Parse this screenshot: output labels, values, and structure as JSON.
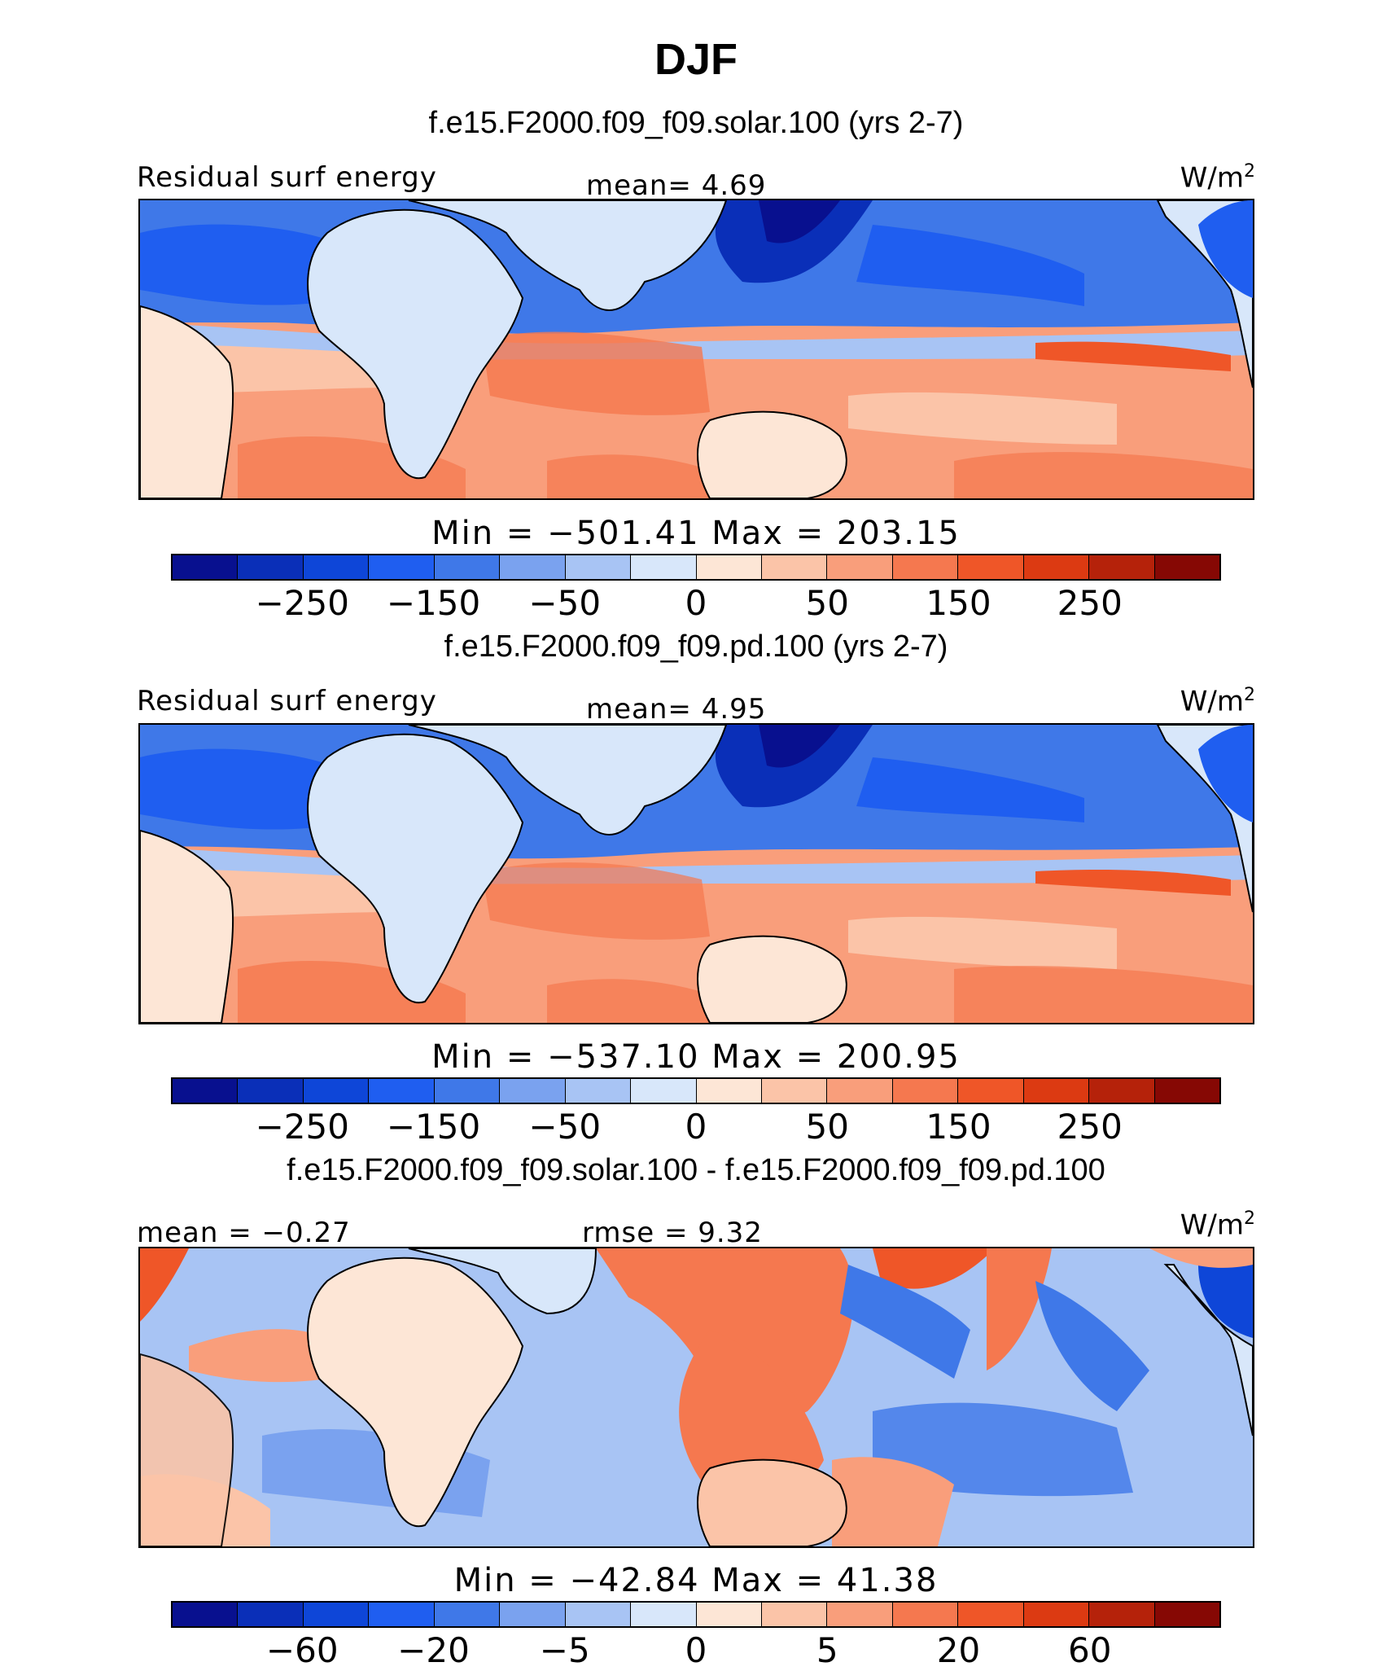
{
  "title": "DJF",
  "colors": [
    "#08108f",
    "#0a2fb8",
    "#0e46d8",
    "#1f5ef0",
    "#3f78e8",
    "#7aa2ef",
    "#a8c4f4",
    "#d8e7fa",
    "#fde6d6",
    "#fbc4a8",
    "#f99e7b",
    "#f5784f",
    "#ef5628",
    "#dc3a12",
    "#b5220a",
    "#860804"
  ],
  "panels": [
    {
      "case": "f.e15.F2000.f09_f09.solar.100 (yrs 2-7)",
      "left_label": "Residual surf energy",
      "center_label": "mean=   4.69",
      "units": "W/m",
      "units_sup": "2",
      "min_max": "Min = −501.41 Max = 203.15",
      "ticks": [
        "−250",
        "−150",
        "−50",
        "0",
        "50",
        "150",
        "250"
      ]
    },
    {
      "case": "f.e15.F2000.f09_f09.pd.100 (yrs 2-7)",
      "left_label": "Residual surf energy",
      "center_label": "mean=   4.95",
      "units": "W/m",
      "units_sup": "2",
      "min_max": "Min = −537.10 Max = 200.95",
      "ticks": [
        "−250",
        "−150",
        "−50",
        "0",
        "50",
        "150",
        "250"
      ]
    },
    {
      "case": "f.e15.F2000.f09_f09.solar.100 - f.e15.F2000.f09_f09.pd.100",
      "left_label": "mean =  −0.27",
      "center_label": "rmse =   9.32",
      "units": "W/m",
      "units_sup": "2",
      "min_max": "Min = −42.84 Max =  41.38",
      "ticks": [
        "−60",
        "−20",
        "−5",
        "0",
        "5",
        "20",
        "60"
      ]
    }
  ]
}
